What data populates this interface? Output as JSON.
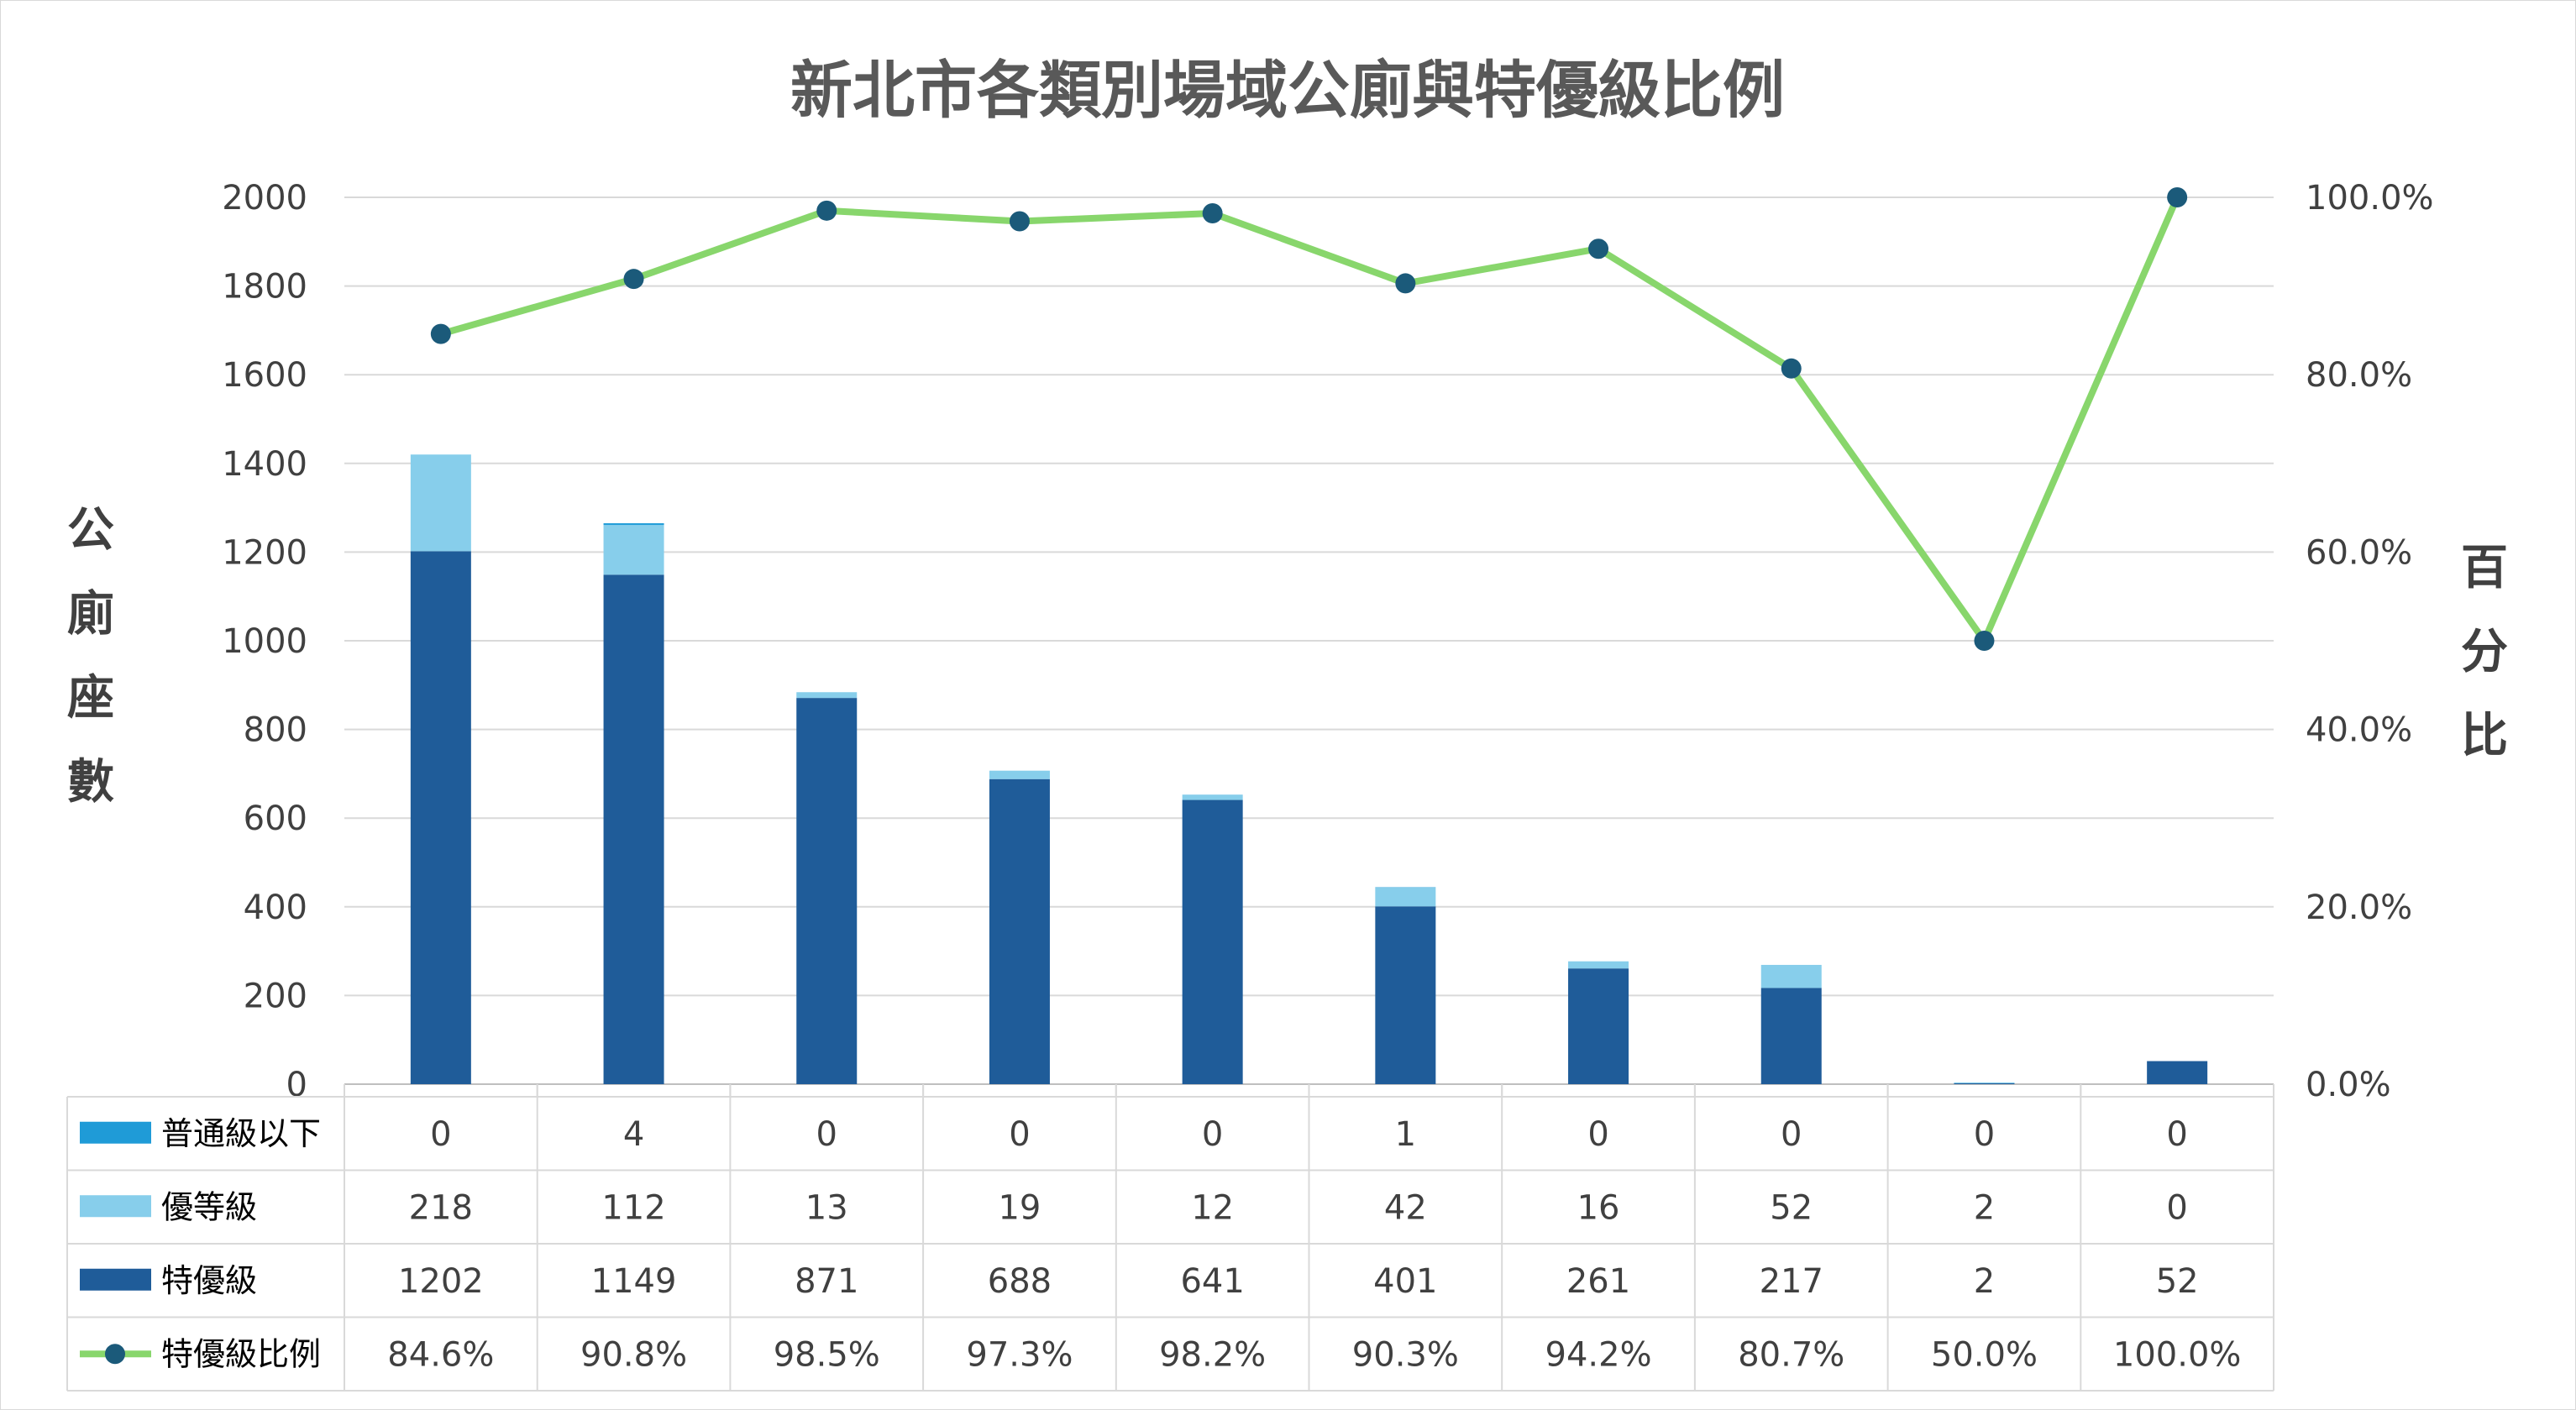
{
  "chart_data": {
    "type": "bar",
    "stacked": true,
    "title": "新北市各類別場域公廁與特優級比例",
    "ylabel": "公廁座數",
    "y2label": "百分比",
    "ylim": [
      0,
      2000
    ],
    "yticks": [
      0,
      200,
      400,
      600,
      800,
      1000,
      1200,
      1400,
      1600,
      1800,
      2000
    ],
    "y2lim": [
      0,
      100
    ],
    "y2ticks": [
      "0.0%",
      "20.0%",
      "40.0%",
      "60.0%",
      "80.0%",
      "100.0%"
    ],
    "grid": true,
    "categories": [
      "",
      "",
      "",
      "",
      "",
      "",
      "",
      "",
      "",
      ""
    ],
    "series": [
      {
        "name": "普通級以下",
        "type": "bar",
        "color": "#1f9bd7",
        "values": [
          0,
          4,
          0,
          0,
          0,
          1,
          0,
          0,
          0,
          0
        ],
        "labels": [
          "0",
          "4",
          "0",
          "0",
          "0",
          "1",
          "0",
          "0",
          "0",
          "0"
        ]
      },
      {
        "name": "優等級",
        "type": "bar",
        "color": "#87ceeb",
        "values": [
          218,
          112,
          13,
          19,
          12,
          42,
          16,
          52,
          2,
          0
        ],
        "labels": [
          "218",
          "112",
          "13",
          "19",
          "12",
          "42",
          "16",
          "52",
          "2",
          "0"
        ]
      },
      {
        "name": "特優級",
        "type": "bar",
        "color": "#1f5c99",
        "values": [
          1202,
          1149,
          871,
          688,
          641,
          401,
          261,
          217,
          2,
          52
        ],
        "labels": [
          "1202",
          "1149",
          "871",
          "688",
          "641",
          "401",
          "261",
          "217",
          "2",
          "52"
        ]
      },
      {
        "name": "特優級比例",
        "type": "line",
        "axis": "right",
        "color": "#88d66c",
        "marker_color": "#1b5a7a",
        "values": [
          84.6,
          90.8,
          98.5,
          97.3,
          98.2,
          90.3,
          94.2,
          80.7,
          50.0,
          100.0
        ],
        "labels": [
          "84.6%",
          "90.8%",
          "98.5%",
          "97.3%",
          "98.2%",
          "90.3%",
          "94.2%",
          "80.7%",
          "50.0%",
          "100.0%"
        ]
      }
    ],
    "data_table": true
  }
}
